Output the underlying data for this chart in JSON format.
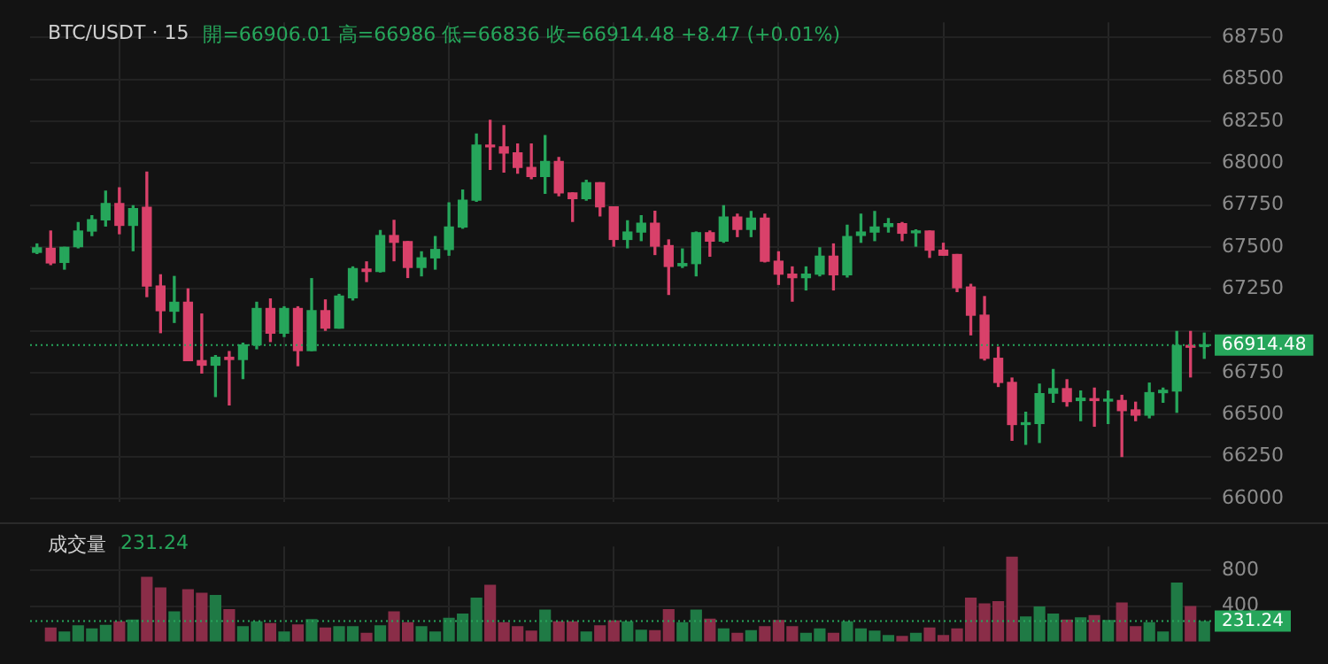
{
  "chart_data": [
    {
      "type": "candlestick",
      "title": "BTC/USDT · 15",
      "subtitle": "開=66906.01  高=66986  低=66836  收=66914.48  +8.47 (+0.01%)",
      "categories": [
        null,
        null,
        null,
        null,
        null,
        null,
        null,
        null,
        null,
        null,
        null,
        null,
        null,
        null,
        null,
        null,
        null,
        null,
        null,
        null,
        null,
        null,
        null,
        null,
        null,
        null,
        null,
        null,
        null,
        null,
        null,
        null,
        null,
        null,
        null,
        null,
        null,
        null,
        null,
        null,
        null,
        null,
        null,
        null,
        null,
        null,
        null,
        null,
        null,
        null,
        null,
        null,
        null,
        null,
        null,
        null,
        null,
        null,
        null,
        null,
        null,
        null,
        null,
        null,
        null,
        null,
        null,
        null,
        null,
        null,
        null,
        null,
        null,
        null,
        null,
        null,
        null,
        null,
        null,
        null,
        null,
        null,
        null,
        null,
        null,
        null
      ],
      "ohlc": [
        [
          67468,
          67518,
          67461,
          67495
        ],
        [
          67492,
          67595,
          67395,
          67405
        ],
        [
          67408,
          67498,
          67368,
          67498
        ],
        [
          67502,
          67645,
          67495,
          67595
        ],
        [
          67595,
          67686,
          67568,
          67662
        ],
        [
          67662,
          67833,
          67625,
          67759
        ],
        [
          67759,
          67853,
          67579,
          67629
        ],
        [
          67629,
          67746,
          67478,
          67729
        ],
        [
          67736,
          67947,
          67204,
          67267
        ],
        [
          67267,
          67334,
          66989,
          67120
        ],
        [
          67117,
          67324,
          67050,
          67170
        ],
        [
          67170,
          67250,
          66822,
          66822
        ],
        [
          66822,
          67100,
          66748,
          66795
        ],
        [
          66795,
          66852,
          66608,
          66842
        ],
        [
          66842,
          66876,
          66558,
          66829
        ],
        [
          66829,
          66926,
          66715,
          66916
        ],
        [
          66916,
          67170,
          66893,
          67133
        ],
        [
          67133,
          67190,
          66936,
          66986
        ],
        [
          66986,
          67143,
          66966,
          67133
        ],
        [
          67133,
          67143,
          66792,
          66882
        ],
        [
          66882,
          67311,
          66882,
          67120
        ],
        [
          67120,
          67184,
          67003,
          67016
        ],
        [
          67016,
          67217,
          67016,
          67207
        ],
        [
          67197,
          67381,
          67184,
          67371
        ],
        [
          67368,
          67411,
          67294,
          67354
        ],
        [
          67354,
          67598,
          67351,
          67568
        ],
        [
          67568,
          67659,
          67418,
          67528
        ],
        [
          67532,
          67532,
          67318,
          67378
        ],
        [
          67378,
          67471,
          67328,
          67435
        ],
        [
          67435,
          67562,
          67368,
          67485
        ],
        [
          67485,
          67763,
          67451,
          67619
        ],
        [
          67619,
          67840,
          67612,
          67779
        ],
        [
          67779,
          68174,
          67773,
          68107
        ],
        [
          68107,
          68255,
          67963,
          68097
        ],
        [
          68097,
          68224,
          67947,
          68061
        ],
        [
          68061,
          68114,
          67940,
          67974
        ],
        [
          67974,
          68114,
          67907,
          67920
        ],
        [
          67920,
          68164,
          67820,
          68010
        ],
        [
          68010,
          68034,
          67806,
          67823
        ],
        [
          67823,
          67823,
          67652,
          67789
        ],
        [
          67789,
          67897,
          67779,
          67883
        ],
        [
          67883,
          67883,
          67686,
          67739
        ],
        [
          67739,
          67739,
          67505,
          67545
        ],
        [
          67545,
          67656,
          67495,
          67589
        ],
        [
          67589,
          67686,
          67538,
          67642
        ],
        [
          67642,
          67713,
          67455,
          67505
        ],
        [
          67508,
          67542,
          67217,
          67384
        ],
        [
          67388,
          67488,
          67378,
          67401
        ],
        [
          67401,
          67589,
          67328,
          67585
        ],
        [
          67585,
          67595,
          67445,
          67535
        ],
        [
          67535,
          67746,
          67528,
          67679
        ],
        [
          67679,
          67696,
          67562,
          67605
        ],
        [
          67605,
          67712,
          67562,
          67672
        ],
        [
          67672,
          67696,
          67411,
          67415
        ],
        [
          67415,
          67471,
          67277,
          67338
        ],
        [
          67338,
          67381,
          67177,
          67317
        ],
        [
          67317,
          67381,
          67244,
          67338
        ],
        [
          67338,
          67495,
          67328,
          67445
        ],
        [
          67445,
          67518,
          67244,
          67334
        ],
        [
          67334,
          67629,
          67321,
          67562
        ],
        [
          67569,
          67696,
          67528,
          67589
        ],
        [
          67589,
          67712,
          67538,
          67619
        ],
        [
          67622,
          67669,
          67589,
          67639
        ],
        [
          67639,
          67646,
          67538,
          67582
        ],
        [
          67585,
          67602,
          67505,
          67595
        ],
        [
          67595,
          67595,
          67438,
          67481
        ],
        [
          67481,
          67522,
          67451,
          67451
        ],
        [
          67455,
          67455,
          67234,
          67257
        ],
        [
          67261,
          67277,
          66976,
          67093
        ],
        [
          67093,
          67204,
          66826,
          66836
        ],
        [
          66836,
          66902,
          66668,
          66692
        ],
        [
          66692,
          66718,
          66347,
          66441
        ],
        [
          66441,
          66514,
          66323,
          66447
        ],
        [
          66447,
          66682,
          66334,
          66625
        ],
        [
          66628,
          66769,
          66574,
          66655
        ],
        [
          66655,
          66708,
          66551,
          66578
        ],
        [
          66584,
          66641,
          66464,
          66598
        ],
        [
          66595,
          66658,
          66431,
          66584
        ],
        [
          66581,
          66641,
          66447,
          66591
        ],
        [
          66584,
          66615,
          66250,
          66524
        ],
        [
          66528,
          66574,
          66464,
          66497
        ],
        [
          66497,
          66688,
          66481,
          66631
        ],
        [
          66631,
          66658,
          66574,
          66645
        ],
        [
          66641,
          66996,
          66514,
          66912
        ],
        [
          66912,
          66996,
          66725,
          66902
        ],
        [
          66906.01,
          66986,
          66836,
          66914.48
        ]
      ],
      "colors": [
        "#26a65b",
        "#d9416a",
        "#26a65b",
        "#26a65b",
        "#26a65b",
        "#26a65b",
        "#d9416a",
        "#26a65b",
        "#d9416a",
        "#d9416a",
        "#26a65b",
        "#d9416a",
        "#d9416a",
        "#26a65b",
        "#d9416a",
        "#26a65b",
        "#26a65b",
        "#d9416a",
        "#26a65b",
        "#d9416a",
        "#26a65b",
        "#d9416a",
        "#26a65b",
        "#26a65b",
        "#d9416a",
        "#26a65b",
        "#d9416a",
        "#d9416a",
        "#26a65b",
        "#26a65b",
        "#26a65b",
        "#26a65b",
        "#26a65b",
        "#d9416a",
        "#d9416a",
        "#d9416a",
        "#d9416a",
        "#26a65b",
        "#d9416a",
        "#d9416a",
        "#26a65b",
        "#d9416a",
        "#d9416a",
        "#26a65b",
        "#26a65b",
        "#d9416a",
        "#d9416a",
        "#26a65b",
        "#26a65b",
        "#d9416a",
        "#26a65b",
        "#d9416a",
        "#26a65b",
        "#d9416a",
        "#d9416a",
        "#d9416a",
        "#26a65b",
        "#26a65b",
        "#d9416a",
        "#26a65b",
        "#26a65b",
        "#26a65b",
        "#26a65b",
        "#d9416a",
        "#26a65b",
        "#d9416a",
        "#d9416a",
        "#d9416a",
        "#d9416a",
        "#d9416a",
        "#d9416a",
        "#d9416a",
        "#26a65b",
        "#26a65b",
        "#26a65b",
        "#d9416a",
        "#26a65b",
        "#d9416a",
        "#26a65b",
        "#d9416a",
        "#d9416a",
        "#26a65b",
        "#26a65b",
        "#26a65b",
        "#d9416a",
        "#26a65b"
      ],
      "ylim": [
        65980,
        68840
      ],
      "yticks": [
        66000,
        66250,
        66500,
        66750,
        {
          "value": 67000,
          "label": null
        },
        67250,
        67500,
        67750,
        68000,
        68250,
        68500,
        68750
      ],
      "grid": true,
      "legend": false,
      "ref_lines": [
        {
          "axis": "y",
          "value": 66914.48,
          "label": "66914.48",
          "color": "#26a65b",
          "line_style": "dotted"
        }
      ]
    },
    {
      "type": "bar",
      "title": "成交量",
      "subtitle": "231.24",
      "categories": [
        null,
        null,
        null,
        null,
        null,
        null,
        null,
        null,
        null,
        null,
        null,
        null,
        null,
        null,
        null,
        null,
        null,
        null,
        null,
        null,
        null,
        null,
        null,
        null,
        null,
        null,
        null,
        null,
        null,
        null,
        null,
        null,
        null,
        null,
        null,
        null,
        null,
        null,
        null,
        null,
        null,
        null,
        null,
        null,
        null,
        null,
        null,
        null,
        null,
        null,
        null,
        null,
        null,
        null,
        null,
        null,
        null,
        null,
        null,
        null,
        null,
        null,
        null,
        null,
        null,
        null,
        null,
        null,
        null,
        null,
        null,
        null,
        null,
        null,
        null,
        null,
        null,
        null,
        null,
        null,
        null,
        null,
        null,
        null,
        null,
        null
      ],
      "values": [
        null,
        160,
        115,
        185,
        150,
        190,
        230,
        250,
        730,
        610,
        340,
        590,
        550,
        525,
        365,
        175,
        230,
        210,
        115,
        195,
        255,
        160,
        175,
        175,
        100,
        185,
        340,
        220,
        175,
        115,
        270,
        315,
        495,
        640,
        220,
        175,
        125,
        360,
        230,
        230,
        115,
        185,
        240,
        230,
        135,
        130,
        365,
        220,
        360,
        260,
        150,
        100,
        130,
        175,
        245,
        175,
        100,
        150,
        100,
        230,
        150,
        125,
        75,
        65,
        100,
        160,
        75,
        150,
        495,
        430,
        455,
        955,
        285,
        395,
        315,
        250,
        275,
        300,
        245,
        440,
        175,
        220,
        115,
        665,
        400,
        231.24
      ],
      "colors": [
        "#1f7a45",
        "#8a2d48",
        "#1f7a45",
        "#1f7a45",
        "#1f7a45",
        "#1f7a45",
        "#8a2d48",
        "#1f7a45",
        "#8a2d48",
        "#8a2d48",
        "#1f7a45",
        "#8a2d48",
        "#8a2d48",
        "#1f7a45",
        "#8a2d48",
        "#1f7a45",
        "#1f7a45",
        "#8a2d48",
        "#1f7a45",
        "#8a2d48",
        "#1f7a45",
        "#8a2d48",
        "#1f7a45",
        "#1f7a45",
        "#8a2d48",
        "#1f7a45",
        "#8a2d48",
        "#8a2d48",
        "#1f7a45",
        "#1f7a45",
        "#1f7a45",
        "#1f7a45",
        "#1f7a45",
        "#8a2d48",
        "#8a2d48",
        "#8a2d48",
        "#8a2d48",
        "#1f7a45",
        "#8a2d48",
        "#8a2d48",
        "#1f7a45",
        "#8a2d48",
        "#8a2d48",
        "#1f7a45",
        "#1f7a45",
        "#8a2d48",
        "#8a2d48",
        "#1f7a45",
        "#1f7a45",
        "#8a2d48",
        "#1f7a45",
        "#8a2d48",
        "#1f7a45",
        "#8a2d48",
        "#8a2d48",
        "#8a2d48",
        "#1f7a45",
        "#1f7a45",
        "#8a2d48",
        "#1f7a45",
        "#1f7a45",
        "#1f7a45",
        "#1f7a45",
        "#8a2d48",
        "#1f7a45",
        "#8a2d48",
        "#8a2d48",
        "#8a2d48",
        "#8a2d48",
        "#8a2d48",
        "#8a2d48",
        "#8a2d48",
        "#1f7a45",
        "#1f7a45",
        "#1f7a45",
        "#8a2d48",
        "#1f7a45",
        "#8a2d48",
        "#1f7a45",
        "#8a2d48",
        "#8a2d48",
        "#1f7a45",
        "#1f7a45",
        "#1f7a45",
        "#8a2d48",
        "#1f7a45"
      ],
      "ylim": [
        0,
        1070
      ],
      "yticks": [
        400,
        800
      ],
      "grid": true,
      "legend": false,
      "ref_lines": [
        {
          "axis": "y",
          "value": 231.24,
          "label": "231.24",
          "color": "#26a65b",
          "line_style": "dotted"
        }
      ]
    }
  ]
}
